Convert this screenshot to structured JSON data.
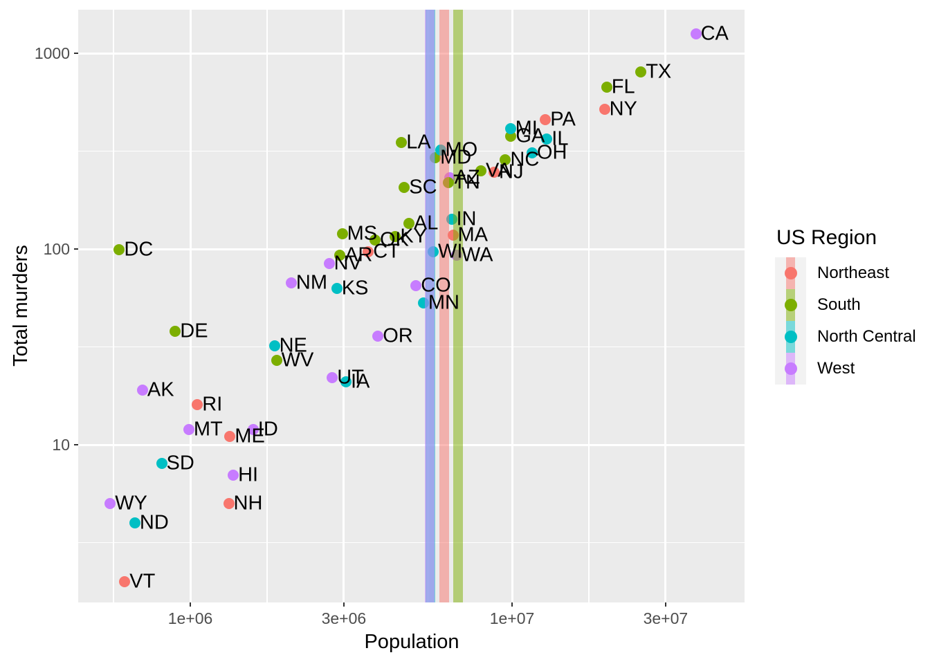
{
  "chart_data": {
    "type": "scatter",
    "title": "",
    "xlabel": "Population",
    "ylabel": "Total murders",
    "x_scale": "log10",
    "y_scale": "log10",
    "xlim": [
      450000,
      54000000
    ],
    "ylim": [
      1.5,
      1670
    ],
    "grid": true,
    "panel_background": "#EBEBEB",
    "gridline_color": "#FFFFFF",
    "tick_text_color": "#4D4D4D",
    "legend_position": "right",
    "legend_title": "US Region",
    "x_ticks": [
      {
        "label": "1e+06",
        "value": 1000000
      },
      {
        "label": "3e+06",
        "value": 3000000
      },
      {
        "label": "1e+07",
        "value": 10000000
      },
      {
        "label": "3e+07",
        "value": 30000000
      }
    ],
    "y_ticks": [
      {
        "label": "10",
        "value": 10
      },
      {
        "label": "100",
        "value": 100
      },
      {
        "label": "1000",
        "value": 1000
      }
    ],
    "regions": [
      {
        "name": "Northeast",
        "color": "#F8766D",
        "mean_population": 6146360
      },
      {
        "name": "South",
        "color": "#7CAE00",
        "mean_population": 6804378
      },
      {
        "name": "North Central",
        "color": "#00BFC4",
        "mean_population": 5577250
      },
      {
        "name": "West",
        "color": "#C77CFF",
        "mean_population": 5534273
      }
    ],
    "points": [
      {
        "abb": "AL",
        "region": "South",
        "population": 4779736,
        "total": 135
      },
      {
        "abb": "AK",
        "region": "West",
        "population": 710231,
        "total": 19
      },
      {
        "abb": "AZ",
        "region": "West",
        "population": 6392017,
        "total": 232
      },
      {
        "abb": "AR",
        "region": "South",
        "population": 2915918,
        "total": 93
      },
      {
        "abb": "CA",
        "region": "West",
        "population": 37253956,
        "total": 1257
      },
      {
        "abb": "CO",
        "region": "West",
        "population": 5029196,
        "total": 65
      },
      {
        "abb": "CT",
        "region": "Northeast",
        "population": 3574097,
        "total": 97
      },
      {
        "abb": "DE",
        "region": "South",
        "population": 897934,
        "total": 38
      },
      {
        "abb": "DC",
        "region": "South",
        "population": 601723,
        "total": 99
      },
      {
        "abb": "FL",
        "region": "South",
        "population": 19687653,
        "total": 669
      },
      {
        "abb": "GA",
        "region": "South",
        "population": 9920000,
        "total": 376
      },
      {
        "abb": "HI",
        "region": "West",
        "population": 1360301,
        "total": 7
      },
      {
        "abb": "ID",
        "region": "West",
        "population": 1567582,
        "total": 12
      },
      {
        "abb": "IL",
        "region": "North Central",
        "population": 12830632,
        "total": 364
      },
      {
        "abb": "IN",
        "region": "North Central",
        "population": 6483802,
        "total": 142
      },
      {
        "abb": "IA",
        "region": "North Central",
        "population": 3046355,
        "total": 21
      },
      {
        "abb": "KS",
        "region": "North Central",
        "population": 2853118,
        "total": 63
      },
      {
        "abb": "KY",
        "region": "South",
        "population": 4339367,
        "total": 116
      },
      {
        "abb": "LA",
        "region": "South",
        "population": 4533372,
        "total": 351
      },
      {
        "abb": "ME",
        "region": "Northeast",
        "population": 1328361,
        "total": 11
      },
      {
        "abb": "MD",
        "region": "South",
        "population": 5773552,
        "total": 293
      },
      {
        "abb": "MA",
        "region": "Northeast",
        "population": 6547629,
        "total": 118
      },
      {
        "abb": "MI",
        "region": "North Central",
        "population": 9883640,
        "total": 413
      },
      {
        "abb": "MN",
        "region": "North Central",
        "population": 5303925,
        "total": 53
      },
      {
        "abb": "MS",
        "region": "South",
        "population": 2967297,
        "total": 120
      },
      {
        "abb": "MO",
        "region": "North Central",
        "population": 5988927,
        "total": 321
      },
      {
        "abb": "MT",
        "region": "West",
        "population": 989415,
        "total": 12
      },
      {
        "abb": "NE",
        "region": "North Central",
        "population": 1826341,
        "total": 32
      },
      {
        "abb": "NV",
        "region": "West",
        "population": 2700551,
        "total": 84
      },
      {
        "abb": "NH",
        "region": "Northeast",
        "population": 1316470,
        "total": 5
      },
      {
        "abb": "NJ",
        "region": "Northeast",
        "population": 8791894,
        "total": 246
      },
      {
        "abb": "NM",
        "region": "West",
        "population": 2059179,
        "total": 67
      },
      {
        "abb": "NY",
        "region": "Northeast",
        "population": 19378102,
        "total": 517
      },
      {
        "abb": "NC",
        "region": "South",
        "population": 9535483,
        "total": 286
      },
      {
        "abb": "ND",
        "region": "North Central",
        "population": 672591,
        "total": 4
      },
      {
        "abb": "OH",
        "region": "North Central",
        "population": 11536504,
        "total": 310
      },
      {
        "abb": "OK",
        "region": "South",
        "population": 3751351,
        "total": 111
      },
      {
        "abb": "OR",
        "region": "West",
        "population": 3831074,
        "total": 36
      },
      {
        "abb": "PA",
        "region": "Northeast",
        "population": 12702379,
        "total": 457
      },
      {
        "abb": "RI",
        "region": "Northeast",
        "population": 1052567,
        "total": 16
      },
      {
        "abb": "SC",
        "region": "South",
        "population": 4625364,
        "total": 207
      },
      {
        "abb": "SD",
        "region": "North Central",
        "population": 814180,
        "total": 8
      },
      {
        "abb": "TN",
        "region": "South",
        "population": 6346105,
        "total": 219
      },
      {
        "abb": "TX",
        "region": "South",
        "population": 25145561,
        "total": 805
      },
      {
        "abb": "UT",
        "region": "West",
        "population": 2763885,
        "total": 22
      },
      {
        "abb": "VT",
        "region": "Northeast",
        "population": 625741,
        "total": 2
      },
      {
        "abb": "VA",
        "region": "South",
        "population": 8001024,
        "total": 250
      },
      {
        "abb": "WA",
        "region": "West",
        "population": 6724540,
        "total": 93
      },
      {
        "abb": "WV",
        "region": "South",
        "population": 1852994,
        "total": 27
      },
      {
        "abb": "WI",
        "region": "North Central",
        "population": 5686986,
        "total": 97
      },
      {
        "abb": "WY",
        "region": "West",
        "population": 563626,
        "total": 5
      }
    ]
  }
}
